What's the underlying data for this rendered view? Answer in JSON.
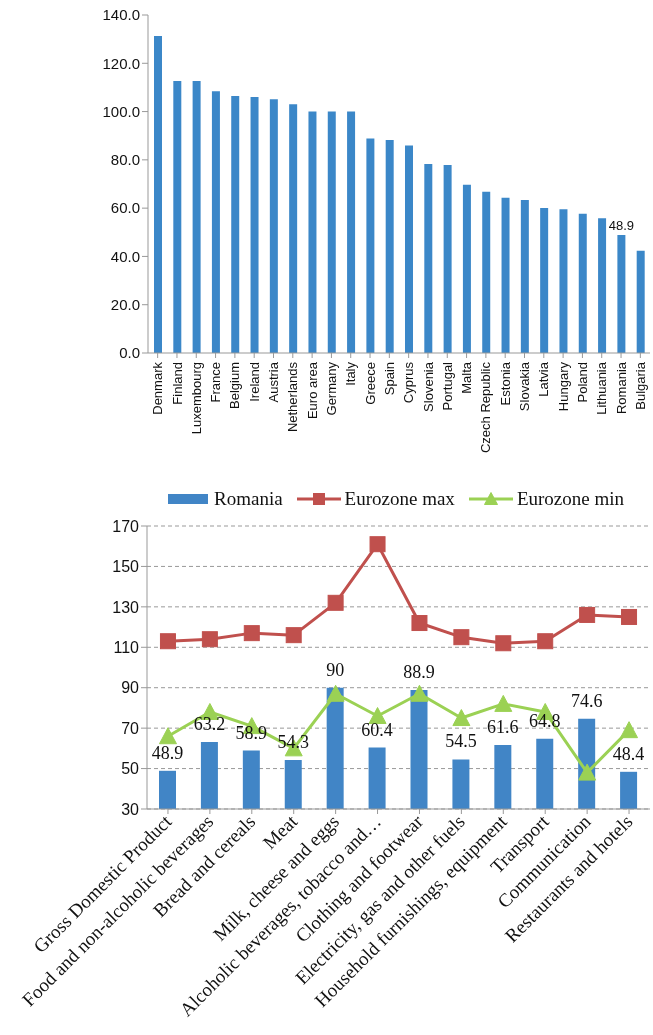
{
  "chart_data": [
    {
      "type": "bar",
      "categories": [
        "Denmark",
        "Finland",
        "Luxembourg",
        "France",
        "Belgium",
        "Ireland",
        "Austria",
        "Netherlands",
        "Euro area",
        "Germany",
        "Italy",
        "Greece",
        "Spain",
        "Cyprus",
        "Slovenia",
        "Portugal",
        "Malta",
        "Czech Republic",
        "Estonia",
        "Slovakia",
        "Latvia",
        "Hungary",
        "Poland",
        "Lithuania",
        "Romania",
        "Bulgaria"
      ],
      "values": [
        131.3,
        112.7,
        112.7,
        108.4,
        106.5,
        106,
        105.1,
        103,
        100,
        100,
        100,
        88.8,
        88.2,
        85.9,
        78.3,
        77.9,
        69.7,
        66.8,
        64.3,
        63.4,
        60.1,
        59.5,
        57.7,
        55.8,
        48.9,
        42.4
      ],
      "value_labels": [
        null,
        null,
        null,
        null,
        null,
        null,
        null,
        null,
        null,
        null,
        null,
        null,
        null,
        null,
        null,
        null,
        null,
        null,
        null,
        null,
        null,
        null,
        null,
        null,
        "48.9",
        null
      ],
      "color": "#3b87c8",
      "ylim": [
        0,
        140
      ],
      "yticks": [
        {
          "value": 0,
          "label": "0.0"
        },
        {
          "value": 20,
          "label": "20.0"
        },
        {
          "value": 40,
          "label": "40.0"
        },
        {
          "value": 60,
          "label": "60.0"
        },
        {
          "value": 80,
          "label": "80.0"
        },
        {
          "value": 100,
          "label": "100.0"
        },
        {
          "value": 120,
          "label": "120.0"
        },
        {
          "value": 140,
          "label": "140.0"
        }
      ]
    },
    {
      "type": "bar",
      "categories": [
        "Gross Domestic Product",
        "Food and non-alcoholic beverages",
        "Bread and cereals",
        "Meat",
        "Milk, cheese and eggs",
        "Alcoholic beverages, tobacco and…",
        "Clothing and footwear",
        "Electricity, gas and other fuels",
        "Household furnishings, equipment",
        "Transport",
        "Communication",
        "Restaurants and hotels"
      ],
      "series": [
        {
          "name": "Romania",
          "color": "#4185c6",
          "values": [
            48.9,
            63.2,
            58.9,
            54.3,
            90,
            60.4,
            88.9,
            54.5,
            61.6,
            64.8,
            74.6,
            48.4
          ],
          "value_labels": [
            "48.9",
            "63.2",
            "58.9",
            "54.3",
            "90",
            "60.4",
            "88.9",
            "54.5",
            "61.6",
            "64.8",
            "74.6",
            "48.4"
          ]
        },
        {
          "name": "Eurozone max",
          "type": "line",
          "marker": "square",
          "color": "#c0504d",
          "values": [
            113,
            114,
            117,
            116,
            132,
            161,
            122,
            115,
            112,
            113,
            126,
            125
          ]
        },
        {
          "name": "Eurozone min",
          "type": "line",
          "marker": "triangle",
          "color": "#9bd154",
          "values": [
            66,
            78,
            71,
            60,
            87,
            76,
            87,
            75,
            82,
            78,
            48,
            69
          ]
        }
      ],
      "ylim": [
        30,
        170
      ],
      "yticks": [
        30,
        50,
        70,
        90,
        110,
        130,
        150,
        170
      ],
      "grid": "y",
      "legend": "top"
    }
  ]
}
